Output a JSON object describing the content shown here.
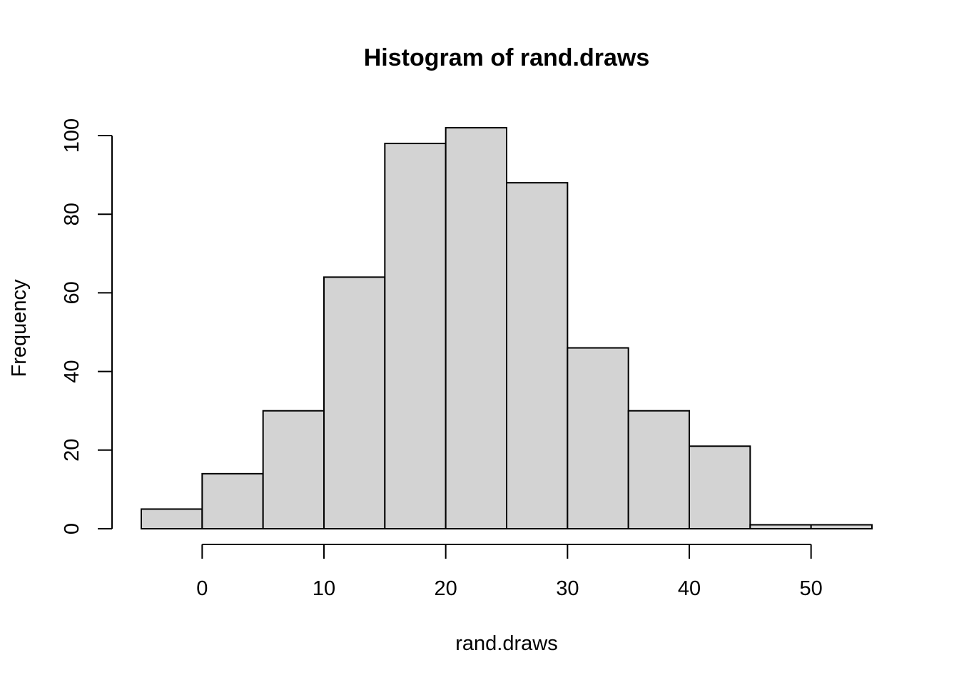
{
  "chart_data": {
    "type": "bar",
    "title": "Histogram of rand.draws",
    "xlabel": "rand.draws",
    "ylabel": "Frequency",
    "bins": [
      {
        "start": -5,
        "end": 0,
        "count": 5
      },
      {
        "start": 0,
        "end": 5,
        "count": 14
      },
      {
        "start": 5,
        "end": 10,
        "count": 30
      },
      {
        "start": 10,
        "end": 15,
        "count": 64
      },
      {
        "start": 15,
        "end": 20,
        "count": 98
      },
      {
        "start": 20,
        "end": 25,
        "count": 102
      },
      {
        "start": 25,
        "end": 30,
        "count": 88
      },
      {
        "start": 30,
        "end": 35,
        "count": 46
      },
      {
        "start": 35,
        "end": 40,
        "count": 30
      },
      {
        "start": 40,
        "end": 45,
        "count": 21
      },
      {
        "start": 45,
        "end": 50,
        "count": 1
      },
      {
        "start": 50,
        "end": 55,
        "count": 1
      }
    ],
    "xticks": [
      0,
      10,
      20,
      30,
      40,
      50
    ],
    "yticks": [
      0,
      20,
      40,
      60,
      80,
      100
    ],
    "xlim": [
      -5,
      55
    ],
    "ylim": [
      0,
      102
    ],
    "grid": false,
    "legend": "none",
    "bar_color": "#d3d3d3",
    "edge_color": "#000000"
  }
}
